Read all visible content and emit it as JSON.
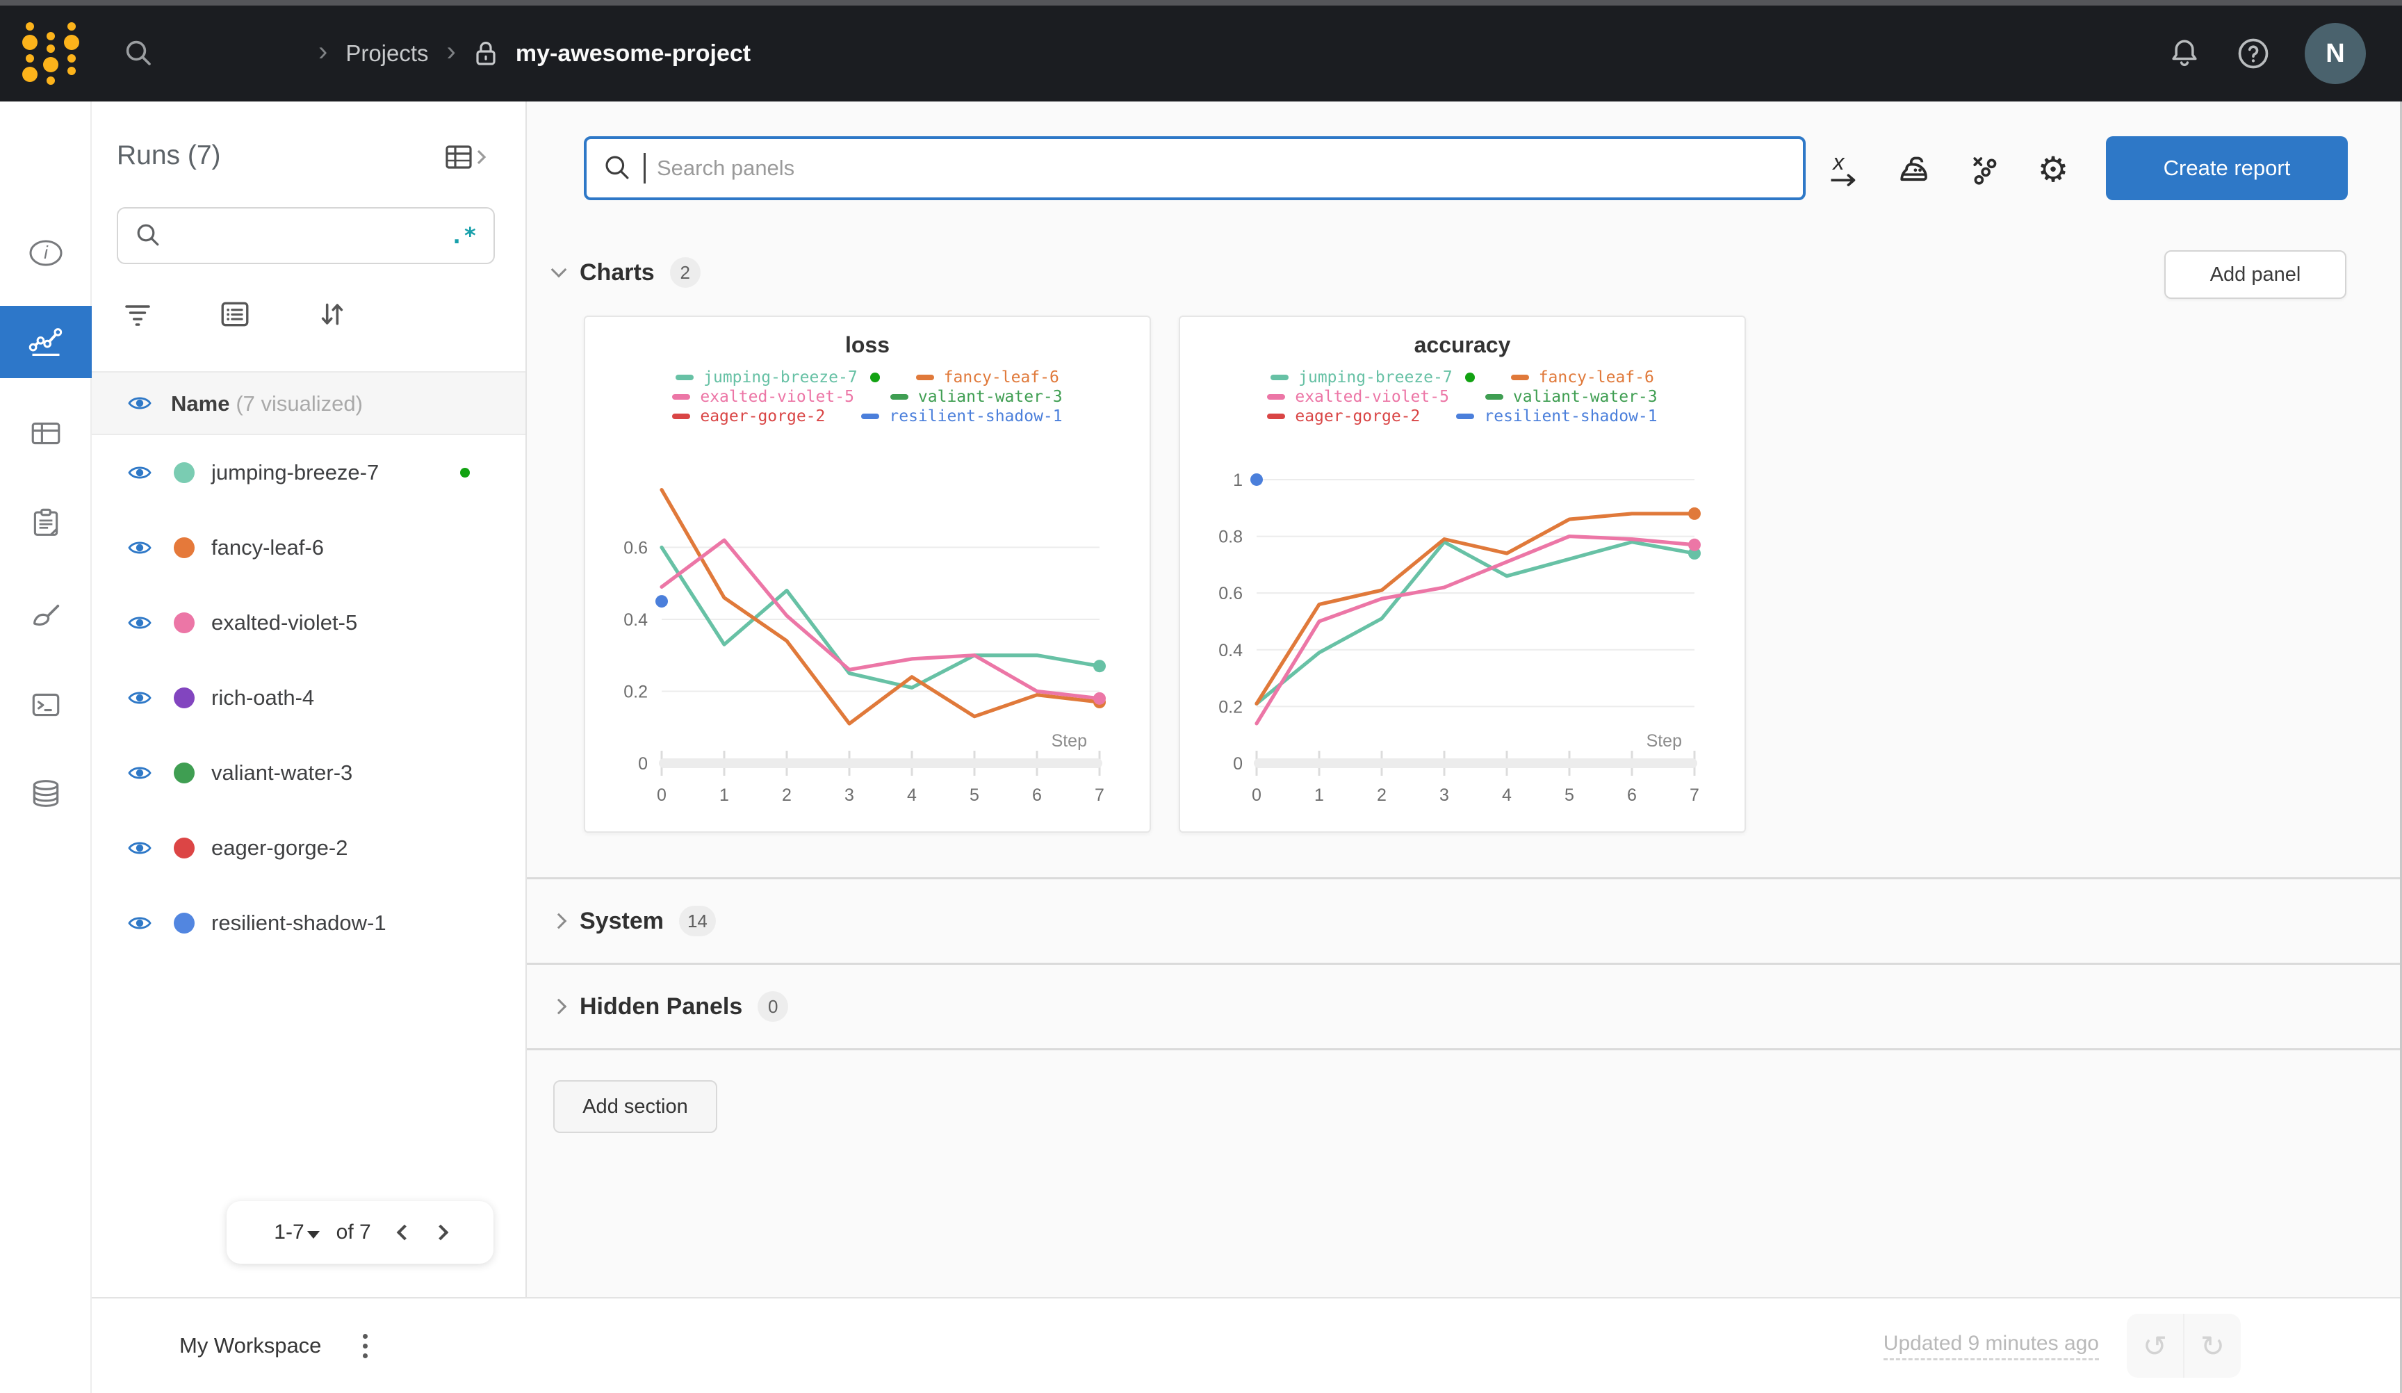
{
  "topbar": {
    "breadcrumb": {
      "projects_label": "Projects",
      "project_name": "my-awesome-project"
    },
    "avatar_initial": "N",
    "icons": [
      "wandb-logo",
      "search-icon",
      "lock-icon",
      "bell-icon",
      "help-icon"
    ]
  },
  "rail": {
    "icons": [
      "info-icon",
      "line-chart-icon",
      "table-icon",
      "notes-icon",
      "sweep-icon",
      "terminal-icon",
      "database-icon"
    ],
    "active": "line-chart-icon"
  },
  "runs_panel": {
    "title": "Runs (7)",
    "search_placeholder": "",
    "regex_toggle": ".*",
    "header": {
      "name_label": "Name",
      "visualized_label": "(7 visualized)"
    },
    "runs": [
      {
        "name": "jumping-breeze-7",
        "color": "#7accb2",
        "running": true
      },
      {
        "name": "fancy-leaf-6",
        "color": "#e5793a"
      },
      {
        "name": "exalted-violet-5",
        "color": "#ec76a6"
      },
      {
        "name": "rich-oath-4",
        "color": "#8245bf"
      },
      {
        "name": "valiant-water-3",
        "color": "#3f9e52"
      },
      {
        "name": "eager-gorge-2",
        "color": "#dc4545"
      },
      {
        "name": "resilient-shadow-1",
        "color": "#5286e0"
      }
    ],
    "pagination": {
      "range": "1-7",
      "of_label": "of 7"
    }
  },
  "toolbar": {
    "search_placeholder": "Search panels",
    "create_report_label": "Create report",
    "icons": [
      "x-axis-icon",
      "smoothing-icon",
      "outliers-icon",
      "settings-icon"
    ]
  },
  "sections": {
    "charts": {
      "label": "Charts",
      "count": "2",
      "add_panel_label": "Add panel"
    },
    "system": {
      "label": "System",
      "count": "14"
    },
    "hidden_panels": {
      "label": "Hidden Panels",
      "count": "0"
    },
    "add_section_label": "Add section"
  },
  "footer": {
    "workspace_label": "My Workspace",
    "updated_label": "Updated 9 minutes ago"
  },
  "ui_colors": {
    "accent_blue": "#2e78c7",
    "topbar_bg": "#1b1d21",
    "logo_gold": "#fcb31b",
    "running_green": "#12a212",
    "regex_teal": "#18a0ab"
  },
  "chart_data": [
    {
      "type": "line",
      "title": "loss",
      "xlabel": "Step",
      "x": [
        0,
        1,
        2,
        3,
        4,
        5,
        6,
        7
      ],
      "xlim": [
        0,
        7
      ],
      "ylim": [
        0,
        0.823
      ],
      "yticks": [
        0,
        0.2,
        0.4,
        0.6
      ],
      "grid": true,
      "legend_position": "top",
      "series": [
        {
          "name": "jumping-breeze-7",
          "color": "#67c1a5",
          "running": true,
          "values": [
            0.6,
            0.33,
            0.48,
            0.25,
            0.21,
            0.3,
            0.3,
            0.27
          ]
        },
        {
          "name": "fancy-leaf-6",
          "color": "#e0793a",
          "values": [
            0.76,
            0.46,
            0.34,
            0.11,
            0.24,
            0.13,
            0.19,
            0.17
          ]
        },
        {
          "name": "exalted-violet-5",
          "color": "#ec76a6",
          "values": [
            0.49,
            0.62,
            0.41,
            0.26,
            0.29,
            0.3,
            0.2,
            0.18
          ]
        },
        {
          "name": "valiant-water-3",
          "color": "#3f9e52",
          "values": []
        },
        {
          "name": "eager-gorge-2",
          "color": "#d94545",
          "values": []
        },
        {
          "name": "resilient-shadow-1",
          "color": "#4b7fdb",
          "point": [
            0,
            0.45
          ]
        }
      ]
    },
    {
      "type": "line",
      "title": "accuracy",
      "xlabel": "Step",
      "x": [
        0,
        1,
        2,
        3,
        4,
        5,
        6,
        7
      ],
      "xlim": [
        0,
        7
      ],
      "ylim": [
        0,
        1.044
      ],
      "yticks": [
        0,
        0.2,
        0.4,
        0.6,
        0.8,
        1
      ],
      "grid": true,
      "legend_position": "top",
      "series": [
        {
          "name": "jumping-breeze-7",
          "color": "#67c1a5",
          "running": true,
          "values": [
            0.21,
            0.39,
            0.51,
            0.78,
            0.66,
            0.72,
            0.78,
            0.74
          ]
        },
        {
          "name": "fancy-leaf-6",
          "color": "#e0793a",
          "values": [
            0.21,
            0.56,
            0.61,
            0.79,
            0.74,
            0.86,
            0.88,
            0.88
          ]
        },
        {
          "name": "exalted-violet-5",
          "color": "#ec76a6",
          "values": [
            0.14,
            0.5,
            0.58,
            0.62,
            0.71,
            0.8,
            0.79,
            0.77
          ]
        },
        {
          "name": "valiant-water-3",
          "color": "#3f9e52",
          "values": []
        },
        {
          "name": "eager-gorge-2",
          "color": "#d94545",
          "values": []
        },
        {
          "name": "resilient-shadow-1",
          "color": "#4b7fdb",
          "point": [
            0,
            1.0
          ]
        }
      ]
    }
  ]
}
